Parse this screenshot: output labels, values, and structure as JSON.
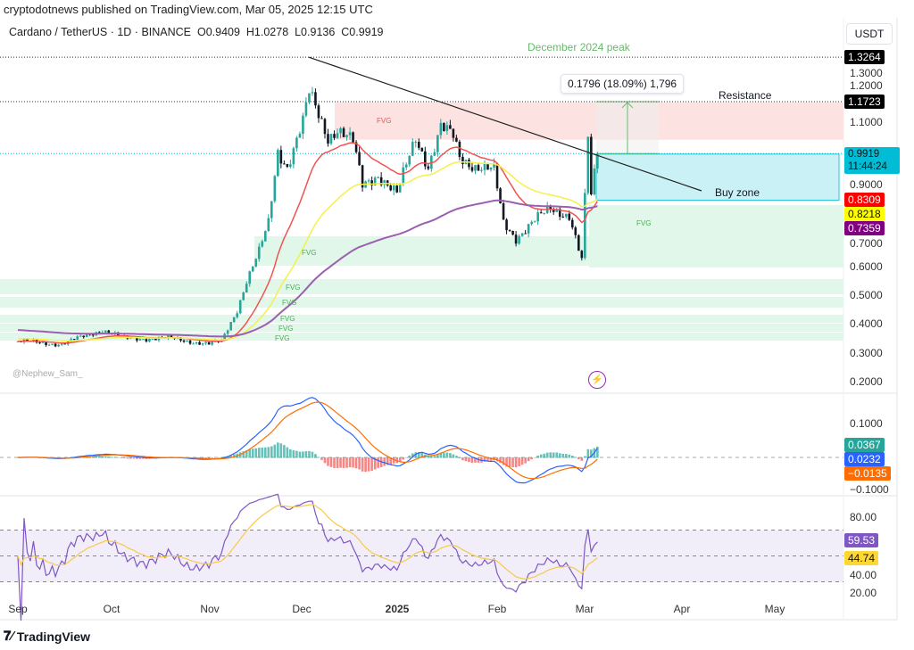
{
  "header": {
    "published": "cryptodotnews published on TradingView.com, Mar 05, 2025 12:15 UTC",
    "symbol": "Cardano / TetherUS · 1D · BINANCE",
    "open": "O0.9409",
    "high": "H1.0278",
    "low": "L0.9136",
    "close": "C0.9919",
    "currency": "USDT"
  },
  "annotations": {
    "peak": "December 2024 peak",
    "measure": "0.1796 (18.09%) 1,796",
    "resistance": "Resistance",
    "buy_zone": "Buy zone",
    "fvg": "FVG",
    "author": "@Nephew_Sam_"
  },
  "brand": "TradingView",
  "colors": {
    "up": "#26a69a",
    "down": "#131722",
    "ema_red": "#f05350",
    "ema_yellow": "#f5f04a",
    "ema_purple": "#9c5fb0",
    "macd": "#2962ff",
    "signal": "#ff6d00",
    "rsi": "#7e57c2",
    "rsi_ma": "#f7c948",
    "buy_zone": "#b2ebf2",
    "resistance_zone": "#fde2e2",
    "fvg_zone": "#e0f7ea"
  },
  "price_tags": {
    "peak": "1.3264",
    "resistance": "1.1723",
    "last": "0.9919",
    "countdown": "11:44:24",
    "ema_red": "0.8309",
    "ema_yellow": "0.8218",
    "ema_purple": "0.7359"
  },
  "macd_tags": {
    "hist": "0.0367",
    "macd": "0.0232",
    "signal": "−0.0135"
  },
  "rsi_tags": {
    "rsi": "59.53",
    "ma": "44.74"
  },
  "chart_data": {
    "type": "candlestick",
    "title": "Cardano / TetherUS 1D",
    "price_ticks": [
      "1.3000",
      "1.2000",
      "1.1000",
      "0.9000",
      "0.7000",
      "0.6000",
      "0.5000",
      "0.4000",
      "0.3000",
      "0.2000"
    ],
    "macd_ticks": [
      "0.1000",
      "−0.1000"
    ],
    "rsi_ticks": [
      "80.00",
      "40.00",
      "20.00"
    ],
    "x_ticks": [
      "Sep",
      "Oct",
      "Nov",
      "Dec",
      "2025",
      "Feb",
      "Mar",
      "Apr",
      "May"
    ],
    "close_keypoints": [
      [
        0,
        0.34
      ],
      [
        14,
        0.33
      ],
      [
        27,
        0.38
      ],
      [
        34,
        0.35
      ],
      [
        49,
        0.35
      ],
      [
        61,
        0.33
      ],
      [
        65,
        0.34
      ],
      [
        70,
        0.45
      ],
      [
        73,
        0.55
      ],
      [
        77,
        0.65
      ],
      [
        80,
        0.75
      ],
      [
        83,
        1.0
      ],
      [
        86,
        0.95
      ],
      [
        91,
        1.1
      ],
      [
        93,
        1.2
      ],
      [
        95,
        1.15
      ],
      [
        99,
        1.05
      ],
      [
        102,
        1.08
      ],
      [
        107,
        1.03
      ],
      [
        110,
        0.88
      ],
      [
        115,
        0.92
      ],
      [
        121,
        0.85
      ],
      [
        127,
        1.05
      ],
      [
        131,
        0.95
      ],
      [
        135,
        1.08
      ],
      [
        139,
        1.05
      ],
      [
        141,
        0.98
      ],
      [
        146,
        0.95
      ],
      [
        152,
        0.93
      ],
      [
        155,
        0.75
      ],
      [
        159,
        0.7
      ],
      [
        164,
        0.75
      ],
      [
        170,
        0.8
      ],
      [
        176,
        0.78
      ],
      [
        180,
        0.62
      ],
      [
        182,
        1.05
      ],
      [
        183,
        0.85
      ],
      [
        184,
        0.94
      ],
      [
        185,
        0.9919
      ]
    ],
    "resistance": 1.1723,
    "peak": 1.3264,
    "buy_zone": [
      0.83,
      0.99
    ]
  }
}
